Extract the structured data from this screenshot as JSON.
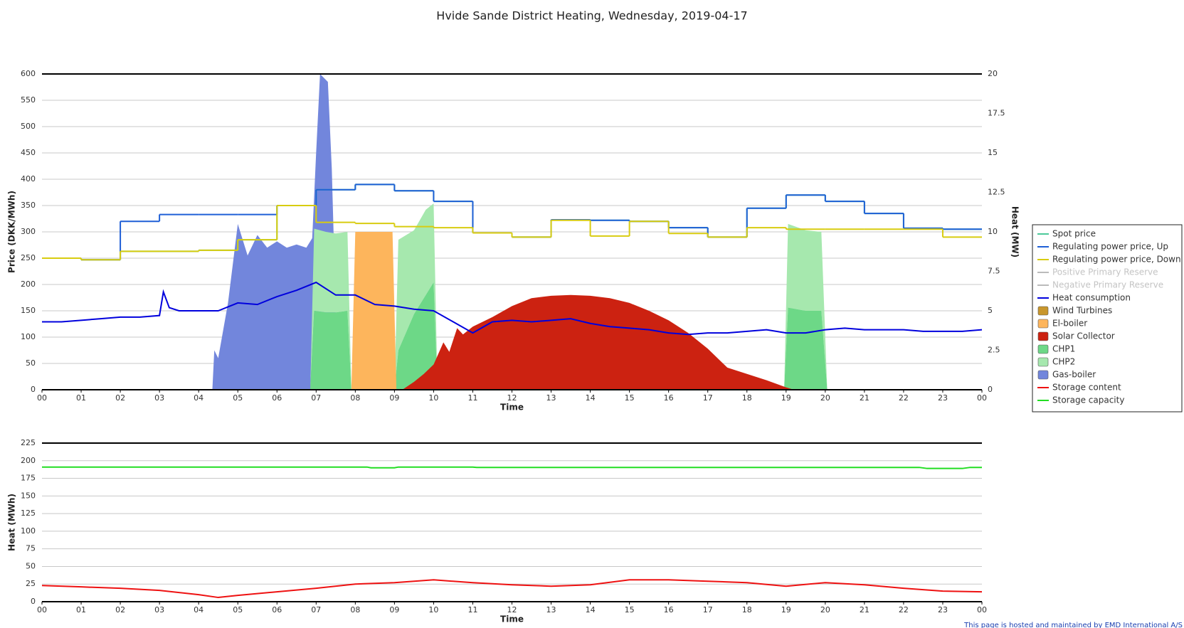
{
  "footer": "This page is hosted and maintained by EMD International A/S",
  "chart_data": [
    {
      "type": "combo",
      "title": "Hvide Sande District Heating, Wednesday, 2019-04-17",
      "xlabel": "Time",
      "ylabel": "Price (DKK/MWh)",
      "y2label": "Heat (MW)",
      "xlim": [
        0,
        24
      ],
      "xticks": [
        {
          "value": 0,
          "label": "00"
        },
        {
          "value": 1,
          "label": "01"
        },
        {
          "value": 2,
          "label": "02"
        },
        {
          "value": 3,
          "label": "03"
        },
        {
          "value": 4,
          "label": "04"
        },
        {
          "value": 5,
          "label": "05"
        },
        {
          "value": 6,
          "label": "06"
        },
        {
          "value": 7,
          "label": "07"
        },
        {
          "value": 8,
          "label": "08"
        },
        {
          "value": 9,
          "label": "09"
        },
        {
          "value": 10,
          "label": "10"
        },
        {
          "value": 11,
          "label": "11"
        },
        {
          "value": 12,
          "label": "12"
        },
        {
          "value": 13,
          "label": "13"
        },
        {
          "value": 14,
          "label": "14"
        },
        {
          "value": 15,
          "label": "15"
        },
        {
          "value": 16,
          "label": "16"
        },
        {
          "value": 17,
          "label": "17"
        },
        {
          "value": 18,
          "label": "18"
        },
        {
          "value": 19,
          "label": "19"
        },
        {
          "value": 20,
          "label": "20"
        },
        {
          "value": 21,
          "label": "21"
        },
        {
          "value": 22,
          "label": "22"
        },
        {
          "value": 23,
          "label": "23"
        },
        {
          "value": 24,
          "label": "00"
        }
      ],
      "ylim": [
        0,
        600
      ],
      "yticks": [
        0,
        50,
        100,
        150,
        200,
        250,
        300,
        350,
        400,
        450,
        500,
        550,
        600
      ],
      "y2lim": [
        0,
        20
      ],
      "y2ticks": [
        0,
        2.5,
        5,
        7.5,
        10,
        12.5,
        15,
        17.5,
        20
      ],
      "grid": true,
      "legend": "right",
      "series": [
        {
          "name": "Spot price",
          "color": "#4cc99a",
          "style": "step",
          "x": [
            0,
            1,
            2,
            3,
            4,
            5,
            6,
            7,
            8,
            9,
            10,
            11,
            12,
            13,
            14,
            15,
            16,
            17,
            18,
            19,
            20,
            21,
            22,
            23
          ],
          "values": [
            250,
            247,
            263,
            263,
            265,
            285,
            350,
            380,
            390,
            378,
            358,
            298,
            290,
            323,
            322,
            320,
            308,
            290,
            345,
            370,
            358,
            335,
            307,
            305
          ]
        },
        {
          "name": "Regulating power price, Up",
          "color": "#1f5fd6",
          "style": "step",
          "x": [
            0,
            1,
            2,
            3,
            4,
            5,
            6,
            7,
            8,
            9,
            10,
            11,
            12,
            13,
            14,
            15,
            16,
            17,
            18,
            19,
            20,
            21,
            22,
            23
          ],
          "values": [
            250,
            247,
            320,
            333,
            333,
            333,
            350,
            380,
            390,
            378,
            358,
            298,
            290,
            323,
            322,
            320,
            308,
            290,
            345,
            370,
            358,
            335,
            307,
            305
          ]
        },
        {
          "name": "Regulating power price, Down",
          "color": "#d8cc10",
          "style": "step",
          "x": [
            0,
            1,
            2,
            3,
            4,
            5,
            6,
            7,
            8,
            9,
            10,
            11,
            12,
            13,
            14,
            15,
            16,
            17,
            18,
            19,
            20,
            21,
            22,
            23
          ],
          "values": [
            250,
            247,
            263,
            263,
            265,
            285,
            350,
            318,
            316,
            310,
            308,
            298,
            290,
            322,
            292,
            320,
            297,
            290,
            308,
            305,
            305,
            305,
            305,
            290
          ]
        },
        {
          "name": "Positive Primary Reserve",
          "color": "#bbbbbb",
          "style": "line",
          "visible": false,
          "x": [],
          "values": []
        },
        {
          "name": "Negative Primary Reserve",
          "color": "#bbbbbb",
          "style": "line",
          "visible": false,
          "x": [],
          "values": []
        },
        {
          "name": "Heat consumption",
          "color": "#0000dd",
          "style": "line",
          "axis": "y2",
          "x": [
            0,
            0.5,
            1,
            1.5,
            2,
            2.5,
            3,
            3.1,
            3.25,
            3.5,
            4,
            4.5,
            5,
            5.5,
            6,
            6.5,
            7,
            7.5,
            8,
            8.5,
            9,
            9.5,
            10,
            10.5,
            11,
            11.5,
            12,
            12.5,
            13,
            13.5,
            14,
            14.5,
            15,
            15.5,
            16,
            16.5,
            17,
            17.5,
            18,
            18.5,
            19,
            19.5,
            20,
            20.5,
            21,
            21.5,
            22,
            22.5,
            23,
            23.5,
            24
          ],
          "values": [
            4.3,
            4.3,
            4.4,
            4.5,
            4.6,
            4.6,
            4.7,
            6.2,
            5.2,
            5.0,
            5.0,
            5.0,
            5.5,
            5.4,
            5.9,
            6.3,
            6.8,
            6.0,
            6.0,
            5.4,
            5.3,
            5.1,
            5.0,
            4.3,
            3.6,
            4.3,
            4.4,
            4.3,
            4.4,
            4.5,
            4.2,
            4.0,
            3.9,
            3.8,
            3.6,
            3.5,
            3.6,
            3.6,
            3.7,
            3.8,
            3.6,
            3.6,
            3.8,
            3.9,
            3.8,
            3.8,
            3.8,
            3.7,
            3.7,
            3.7,
            3.8
          ]
        },
        {
          "name": "Wind Turbines",
          "color": "#c8962c",
          "style": "area",
          "axis": "y2",
          "x": [],
          "values": []
        },
        {
          "name": "El-boiler",
          "color": "#fdb55c",
          "style": "area",
          "axis": "y2",
          "x": [
            7.9,
            8.0,
            8.25,
            8.5,
            8.75,
            8.95,
            9.05
          ],
          "values": [
            0,
            10,
            10,
            10,
            10,
            10,
            0
          ]
        },
        {
          "name": "Solar Collector",
          "color": "#cc2211",
          "style": "area",
          "axis": "y2",
          "x": [
            9.2,
            9.5,
            9.75,
            10,
            10.25,
            10.4,
            10.6,
            10.75,
            11,
            11.5,
            12,
            12.5,
            13,
            13.5,
            14,
            14.5,
            15,
            15.5,
            16,
            16.5,
            17,
            17.5,
            18,
            18.5,
            19,
            19.2
          ],
          "values": [
            0,
            0.5,
            1.0,
            1.6,
            3.0,
            2.4,
            3.9,
            3.5,
            4.0,
            4.6,
            5.3,
            5.8,
            5.95,
            6.0,
            5.95,
            5.8,
            5.5,
            5.0,
            4.4,
            3.6,
            2.6,
            1.4,
            1.0,
            0.6,
            0.15,
            0
          ]
        },
        {
          "name": "CHP1",
          "color": "#6dd887",
          "style": "area",
          "axis": "y2",
          "stacked": true,
          "x": [
            6.85,
            6.95,
            7.25,
            7.5,
            7.8,
            7.9,
            9.0,
            9.1,
            9.5,
            9.8,
            10.0,
            10.1,
            18.95,
            19.05,
            19.5,
            19.9,
            20.05
          ],
          "values": [
            0,
            5,
            4.9,
            4.9,
            5,
            0,
            0,
            2.5,
            4.8,
            6,
            6.8,
            0,
            0,
            5.2,
            5,
            5,
            0
          ]
        },
        {
          "name": "CHP2",
          "color": "#a6e8ae",
          "style": "area",
          "axis": "y2",
          "stacked": true,
          "x": [
            6.85,
            6.95,
            7.25,
            7.5,
            7.8,
            7.9,
            9.0,
            9.1,
            9.5,
            9.8,
            10.0,
            10.1,
            18.95,
            19.05,
            19.5,
            19.9,
            20.05
          ],
          "values": [
            0,
            5.2,
            5.1,
            5,
            5,
            0,
            0,
            7,
            5.3,
            5.4,
            5,
            0,
            0,
            5.3,
            5.1,
            5,
            0
          ]
        },
        {
          "name": "Gas-boiler",
          "color": "#7286dc",
          "style": "area",
          "axis": "y2",
          "x": [
            4.35,
            4.4,
            4.5,
            4.75,
            5.0,
            5.25,
            5.5,
            5.75,
            6.0,
            6.25,
            6.5,
            6.75,
            6.9,
            7.0,
            7.1,
            7.3,
            7.4,
            7.5,
            7.55
          ],
          "values": [
            0,
            2.5,
            2.0,
            5.5,
            10.5,
            8.5,
            9.8,
            9.0,
            9.4,
            9.0,
            9.2,
            9.0,
            9.6,
            15,
            20,
            19.5,
            14,
            5,
            0
          ]
        }
      ]
    },
    {
      "type": "line",
      "xlabel": "Time",
      "ylabel": "Heat (MWh)",
      "xlim": [
        0,
        24
      ],
      "xticks": [
        {
          "value": 0,
          "label": "00"
        },
        {
          "value": 1,
          "label": "01"
        },
        {
          "value": 2,
          "label": "02"
        },
        {
          "value": 3,
          "label": "03"
        },
        {
          "value": 4,
          "label": "04"
        },
        {
          "value": 5,
          "label": "05"
        },
        {
          "value": 6,
          "label": "06"
        },
        {
          "value": 7,
          "label": "07"
        },
        {
          "value": 8,
          "label": "08"
        },
        {
          "value": 9,
          "label": "09"
        },
        {
          "value": 10,
          "label": "10"
        },
        {
          "value": 11,
          "label": "11"
        },
        {
          "value": 12,
          "label": "12"
        },
        {
          "value": 13,
          "label": "13"
        },
        {
          "value": 14,
          "label": "14"
        },
        {
          "value": 15,
          "label": "15"
        },
        {
          "value": 16,
          "label": "16"
        },
        {
          "value": 17,
          "label": "17"
        },
        {
          "value": 18,
          "label": "18"
        },
        {
          "value": 19,
          "label": "19"
        },
        {
          "value": 20,
          "label": "20"
        },
        {
          "value": 21,
          "label": "21"
        },
        {
          "value": 22,
          "label": "22"
        },
        {
          "value": 23,
          "label": "23"
        },
        {
          "value": 24,
          "label": "00"
        }
      ],
      "ylim": [
        0,
        225
      ],
      "yticks": [
        0,
        25,
        50,
        75,
        100,
        125,
        150,
        175,
        200,
        225
      ],
      "grid": true,
      "series": [
        {
          "name": "Storage content",
          "color": "#ee1111",
          "style": "line",
          "x": [
            0,
            1,
            2,
            3,
            4,
            4.5,
            5,
            6,
            7,
            8,
            9,
            10,
            11,
            12,
            13,
            14,
            15,
            16,
            17,
            18,
            19,
            20,
            21,
            22,
            23,
            24
          ],
          "values": [
            23,
            21,
            19,
            16,
            10,
            6,
            9,
            14,
            19,
            25,
            27,
            31,
            27,
            24,
            22,
            24,
            31,
            31,
            29,
            27,
            22,
            27,
            24,
            19,
            15,
            14
          ]
        },
        {
          "name": "Storage capacity",
          "color": "#22dd22",
          "style": "line",
          "x": [
            0,
            8.3,
            8.4,
            9,
            9.1,
            11,
            11.1,
            22.4,
            22.6,
            23.5,
            23.7,
            24
          ],
          "values": [
            191,
            191,
            190,
            190,
            191,
            191,
            190.5,
            190.5,
            189,
            189,
            190.5,
            190.5
          ]
        }
      ]
    }
  ]
}
